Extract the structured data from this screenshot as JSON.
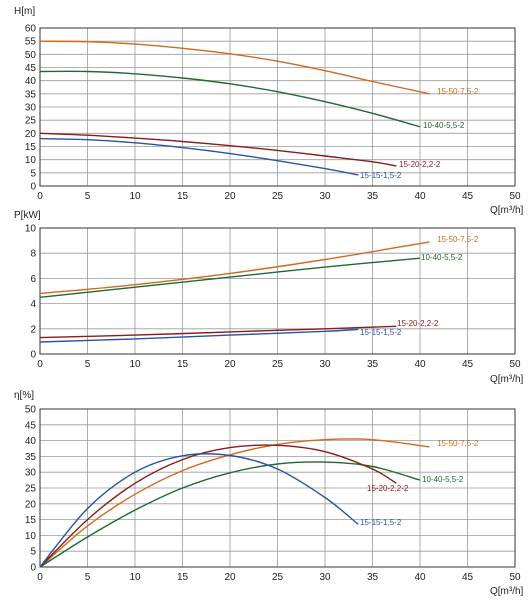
{
  "chart_data": [
    {
      "type": "line",
      "ylabel": "H[m]",
      "xlabel": "Q[m³/h]",
      "xlim": [
        0,
        50
      ],
      "ylim": [
        0,
        60
      ],
      "xticks": [
        "0",
        "5",
        "10",
        "15",
        "20",
        "25",
        "30",
        "35",
        "40",
        "45",
        "50"
      ],
      "yticks": [
        "0",
        "5",
        "10",
        "15",
        "20",
        "25",
        "30",
        "35",
        "40",
        "45",
        "50",
        "55",
        "60"
      ],
      "grid": true,
      "series": [
        {
          "name": "15-50-7,5-2",
          "color": "#d2691e",
          "x": [
            0,
            5,
            10,
            15,
            20,
            25,
            30,
            35,
            41
          ],
          "y": [
            55,
            54.8,
            53.9,
            52.3,
            50.2,
            47.4,
            43.8,
            39.7,
            35
          ]
        },
        {
          "name": "10-40-5,5-2",
          "color": "#1d6b2e",
          "x": [
            0,
            5,
            10,
            15,
            20,
            25,
            30,
            35,
            40
          ],
          "y": [
            43.5,
            43.5,
            42.6,
            41,
            38.8,
            35.8,
            32,
            27.6,
            22.5
          ]
        },
        {
          "name": "15-20-2,2-2",
          "color": "#8b1a1a",
          "x": [
            0,
            5,
            10,
            15,
            20,
            25,
            30,
            35,
            37.5
          ],
          "y": [
            20,
            19.3,
            18.2,
            16.9,
            15.3,
            13.5,
            11.4,
            9.2,
            7.6
          ]
        },
        {
          "name": "15-15-1,5-2",
          "color": "#2a52a8",
          "x": [
            0,
            5,
            10,
            15,
            20,
            25,
            30,
            33.5
          ],
          "y": [
            18,
            17.6,
            16.4,
            14.6,
            12.3,
            9.6,
            6.6,
            4.2
          ]
        }
      ]
    },
    {
      "type": "line",
      "ylabel": "P[kW]",
      "xlabel": "Q[m³/h]",
      "xlim": [
        0,
        50
      ],
      "ylim": [
        0,
        10
      ],
      "xticks": [
        "0",
        "5",
        "10",
        "15",
        "20",
        "25",
        "30",
        "35",
        "40",
        "45",
        "50"
      ],
      "yticks": [
        "0",
        "2",
        "4",
        "6",
        "8",
        "10"
      ],
      "grid": true,
      "series": [
        {
          "name": "15-50-7,5-2",
          "color": "#d2691e",
          "x": [
            0,
            10,
            20,
            30,
            41
          ],
          "y": [
            4.8,
            5.5,
            6.4,
            7.5,
            8.9
          ]
        },
        {
          "name": "10-40-5,5-2",
          "color": "#1d6b2e",
          "x": [
            0,
            10,
            20,
            30,
            40
          ],
          "y": [
            4.5,
            5.3,
            6.1,
            6.9,
            7.6
          ]
        },
        {
          "name": "15-20-2,2-2",
          "color": "#8b1a1a",
          "x": [
            0,
            10,
            20,
            30,
            37.5
          ],
          "y": [
            1.3,
            1.5,
            1.75,
            2.0,
            2.2
          ]
        },
        {
          "name": "15-15-1,5-2",
          "color": "#2a52a8",
          "x": [
            0,
            10,
            20,
            30,
            33.5
          ],
          "y": [
            0.95,
            1.2,
            1.5,
            1.8,
            1.95
          ]
        }
      ]
    },
    {
      "type": "line",
      "ylabel": "η[%]",
      "xlabel": "Q[m³/h]",
      "xlim": [
        0,
        50
      ],
      "ylim": [
        0,
        50
      ],
      "xticks": [
        "0",
        "5",
        "10",
        "15",
        "20",
        "25",
        "30",
        "35",
        "40",
        "45",
        "50"
      ],
      "yticks": [
        "0",
        "5",
        "10",
        "15",
        "20",
        "25",
        "30",
        "35",
        "40",
        "45",
        "50"
      ],
      "grid": true,
      "series": [
        {
          "name": "15-50-7,5-2",
          "color": "#d2691e",
          "x": [
            0,
            5,
            10,
            15,
            20,
            25,
            30,
            35,
            41
          ],
          "y": [
            0,
            13,
            23,
            30.5,
            35.5,
            38.8,
            40.3,
            40.3,
            38
          ]
        },
        {
          "name": "10-40-5,5-2",
          "color": "#1d6b2e",
          "x": [
            0,
            5,
            10,
            15,
            20,
            25,
            30,
            35,
            40
          ],
          "y": [
            0,
            9.5,
            18,
            25,
            29.8,
            32.6,
            33.2,
            31.8,
            27.5
          ]
        },
        {
          "name": "15-20-2,2-2",
          "color": "#8b1a1a",
          "x": [
            0,
            5,
            10,
            15,
            20,
            25,
            30,
            35,
            37.5
          ],
          "y": [
            0,
            15,
            26.5,
            34,
            37.8,
            38.5,
            36.5,
            31,
            26.5
          ]
        },
        {
          "name": "15-15-1,5-2",
          "color": "#2a52a8",
          "x": [
            0,
            5,
            10,
            15,
            20,
            25,
            30,
            33.5
          ],
          "y": [
            0,
            18.5,
            30,
            35.2,
            35.3,
            31,
            22,
            13.5
          ]
        }
      ]
    }
  ]
}
